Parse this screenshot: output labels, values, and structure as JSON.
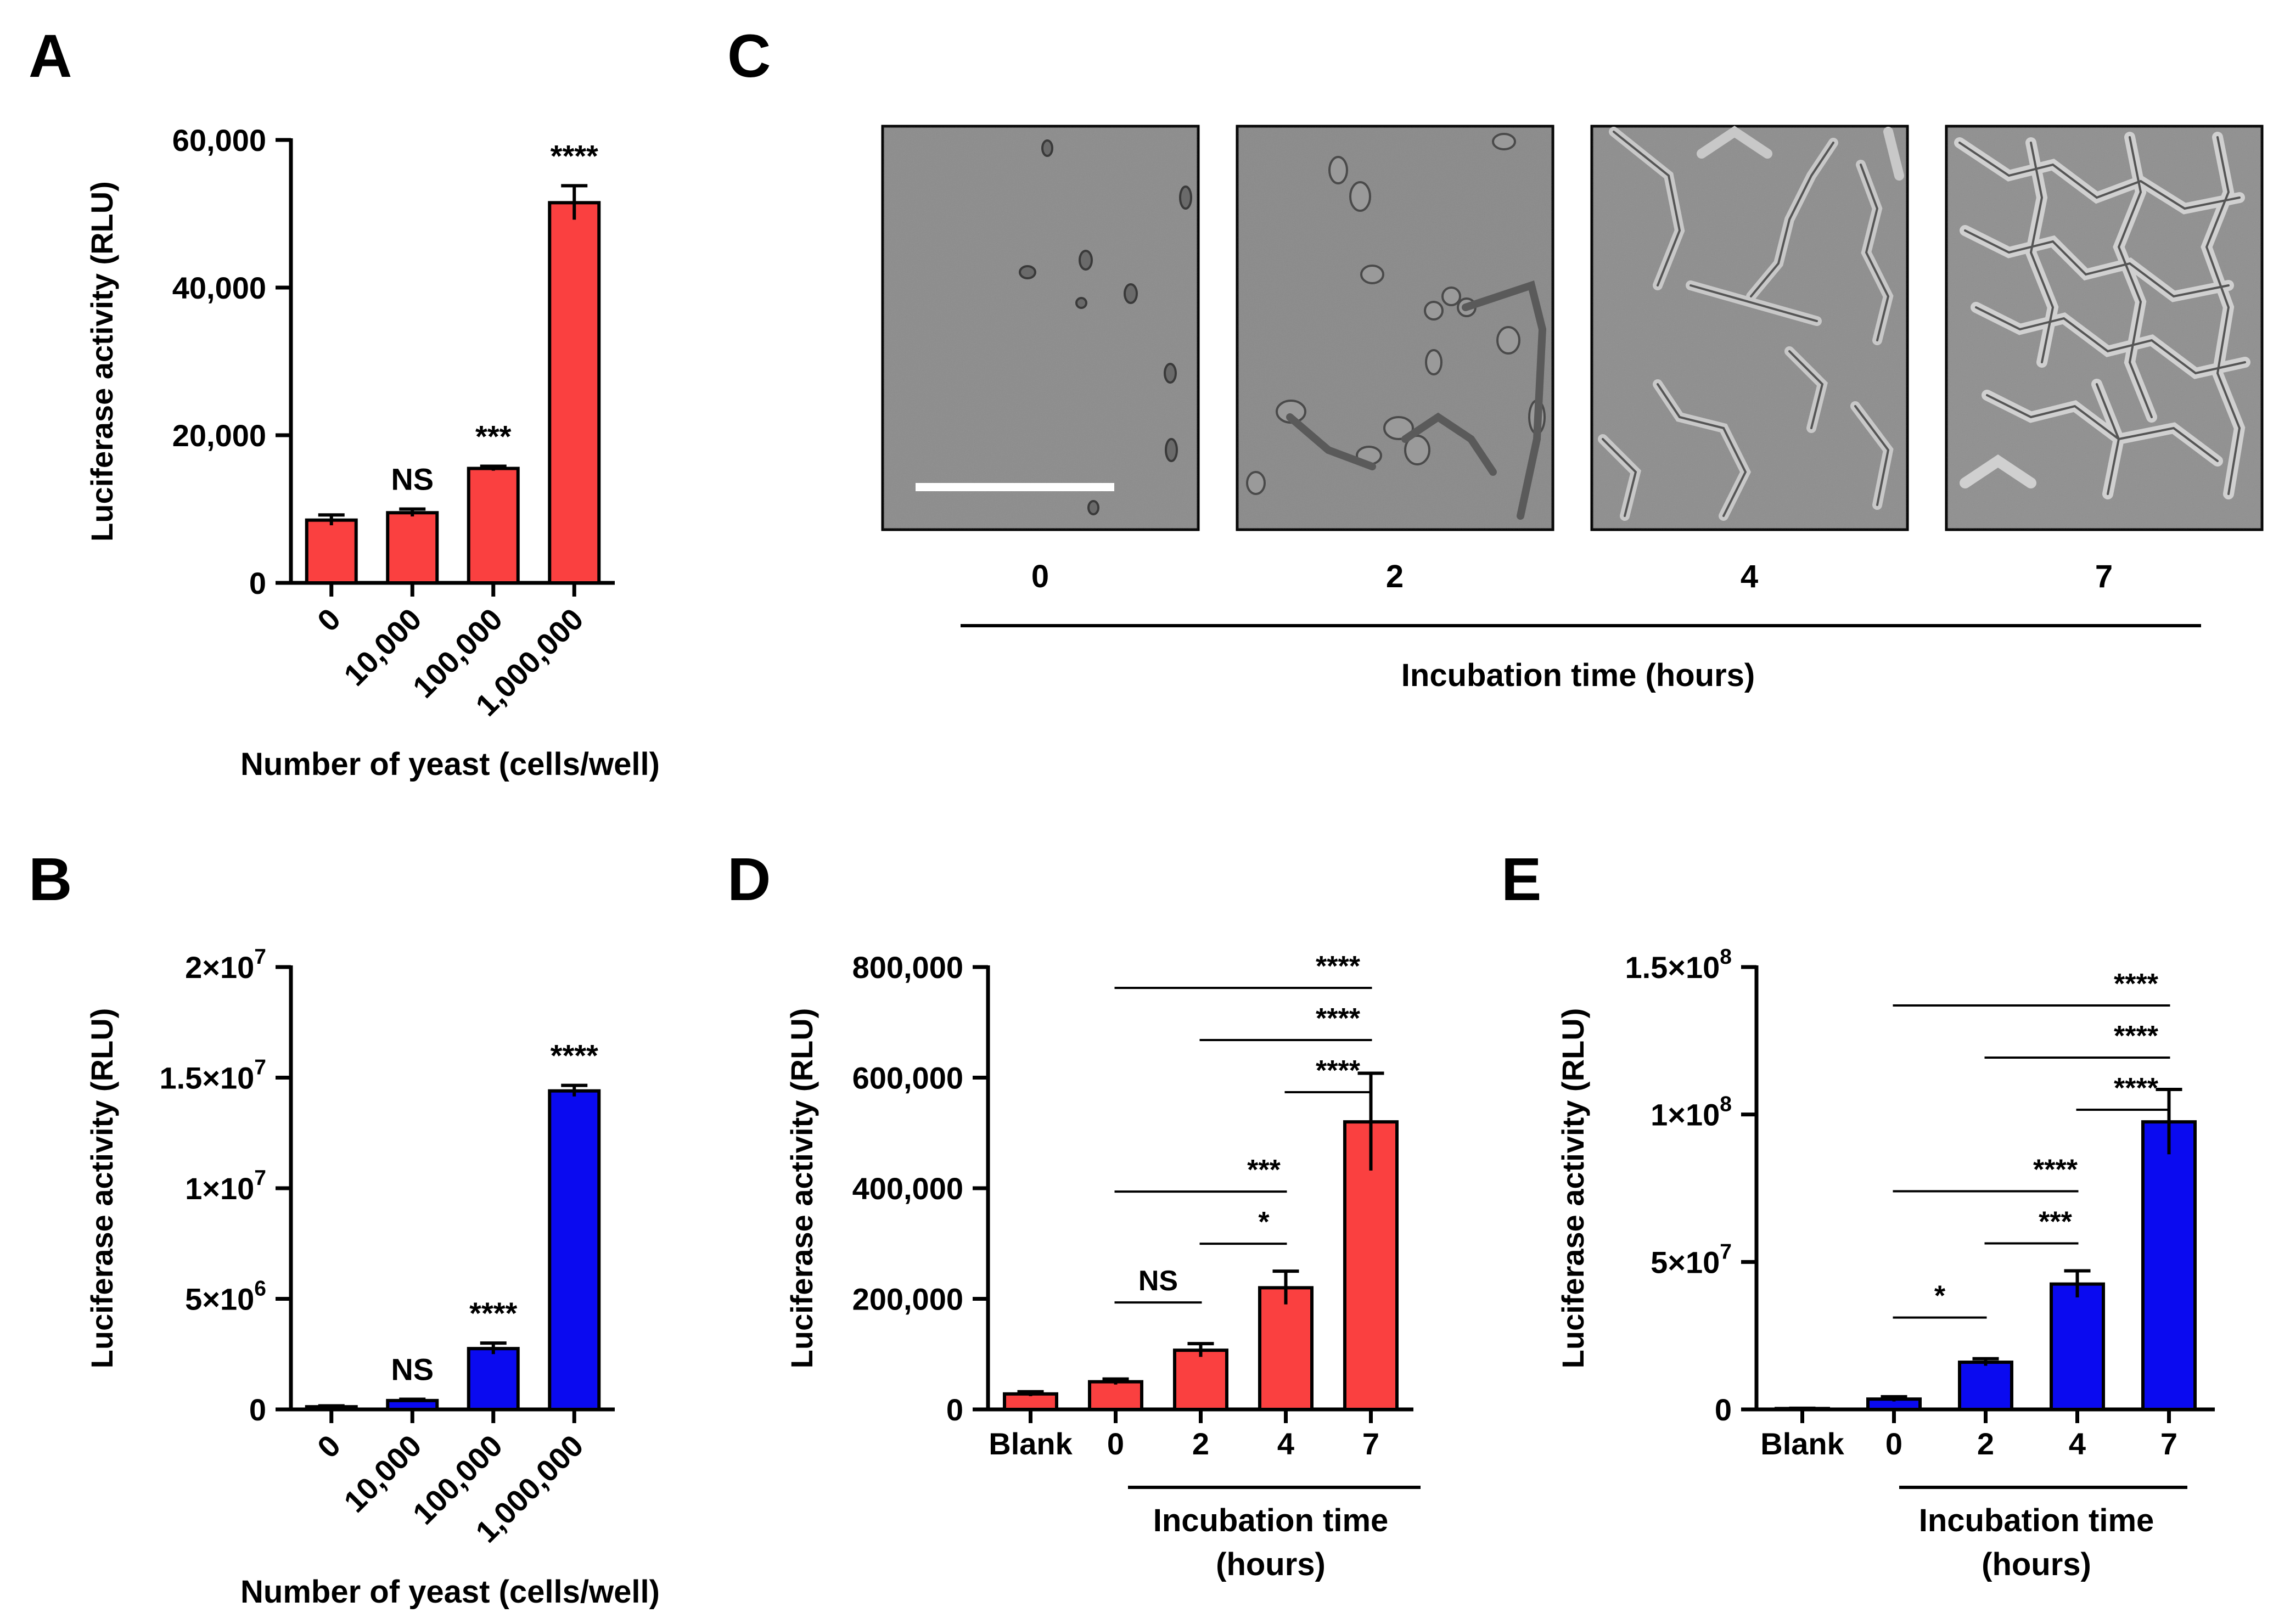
{
  "panel_letters": {
    "a": "A",
    "b": "B",
    "c": "C",
    "d": "D",
    "e": "E"
  },
  "colors": {
    "red": "#fa4040",
    "blue": "#0a0af0",
    "axis": "#000000"
  },
  "chart_data": [
    {
      "id": "A",
      "type": "bar",
      "categories": [
        "0",
        "10,000",
        "100,000",
        "1,000,000"
      ],
      "values": [
        8500,
        9500,
        15500,
        51500
      ],
      "errors": [
        700,
        500,
        300,
        2300
      ],
      "ylabel": "Luciferase activity (RLU)",
      "xlabel": "Number of yeast (cells/well)",
      "ylim": [
        0,
        60000
      ],
      "yticks": [
        0,
        20000,
        40000,
        60000
      ],
      "yticklabels": [
        "0",
        "20,000",
        "40,000",
        "60,000"
      ],
      "significance": [
        "",
        "NS",
        "***",
        "****"
      ],
      "color": "#fa4040"
    },
    {
      "id": "B",
      "type": "bar",
      "categories": [
        "0",
        "10,000",
        "100,000",
        "1,000,000"
      ],
      "values": [
        120000,
        400000,
        2750000,
        14400000
      ],
      "errors": [
        40000,
        60000,
        250000,
        250000
      ],
      "ylabel": "Luciferase activity (RLU)",
      "xlabel": "Number of yeast (cells/well)",
      "ylim": [
        0,
        20000000
      ],
      "yticks": [
        0,
        5000000,
        10000000,
        15000000,
        20000000
      ],
      "yticklabels": [
        {
          "m": "0",
          "e": ""
        },
        {
          "m": "5×10",
          "e": "6"
        },
        {
          "m": "1×10",
          "e": "7"
        },
        {
          "m": "1.5×10",
          "e": "7"
        },
        {
          "m": "2×10",
          "e": "7"
        }
      ],
      "significance": [
        "",
        "NS",
        "****",
        "****"
      ],
      "color": "#0a0af0"
    },
    {
      "id": "D",
      "type": "bar",
      "categories": [
        "Blank",
        "0",
        "2",
        "4",
        "7"
      ],
      "values": [
        28000,
        50000,
        107000,
        220000,
        520000
      ],
      "errors": [
        4000,
        5000,
        12000,
        30000,
        88000
      ],
      "ylabel": "Luciferase activity (RLU)",
      "xlabel": "Incubation time\n(hours)",
      "ylim": [
        0,
        800000
      ],
      "yticks": [
        0,
        200000,
        400000,
        600000,
        800000
      ],
      "yticklabels": [
        "0",
        "200,000",
        "400,000",
        "600,000",
        "800,000"
      ],
      "brackets": [
        {
          "from": 1,
          "to": 2,
          "label": "NS"
        },
        {
          "from": 2,
          "to": 3,
          "label": "*"
        },
        {
          "from": 1,
          "to": 3,
          "label": "***"
        },
        {
          "from": 3,
          "to": 4,
          "label": "****"
        },
        {
          "from": 2,
          "to": 4,
          "label": "****"
        },
        {
          "from": 1,
          "to": 4,
          "label": "****"
        }
      ],
      "color": "#fa4040"
    },
    {
      "id": "E",
      "type": "bar",
      "categories": [
        "Blank",
        "0",
        "2",
        "4",
        "7"
      ],
      "values": [
        300000,
        3500000,
        16000000,
        42500000,
        97500000
      ],
      "errors": [
        100000,
        800000,
        1200000,
        4500000,
        11000000
      ],
      "ylabel": "Luciferase activity (RLU)",
      "xlabel": "Incubation time\n(hours)",
      "ylim": [
        0,
        150000000
      ],
      "yticks": [
        0,
        50000000,
        100000000,
        150000000
      ],
      "yticklabels": [
        {
          "m": "0",
          "e": ""
        },
        {
          "m": "5×10",
          "e": "7"
        },
        {
          "m": "1×10",
          "e": "8"
        },
        {
          "m": "1.5×10",
          "e": "8"
        }
      ],
      "brackets": [
        {
          "from": 1,
          "to": 2,
          "label": "*"
        },
        {
          "from": 2,
          "to": 3,
          "label": "***"
        },
        {
          "from": 1,
          "to": 3,
          "label": "****"
        },
        {
          "from": 3,
          "to": 4,
          "label": "****"
        },
        {
          "from": 2,
          "to": 4,
          "label": "****"
        },
        {
          "from": 1,
          "to": 4,
          "label": "****"
        }
      ],
      "color": "#0a0af0"
    }
  ],
  "micrographs": {
    "time_labels": [
      "0",
      "2",
      "4",
      "7"
    ],
    "caption": "Incubation time (hours)",
    "has_scale_bar": true
  }
}
